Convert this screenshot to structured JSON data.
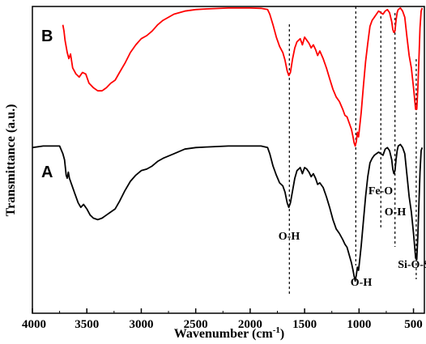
{
  "chart_data": {
    "type": "line",
    "xlabel": "Wavenumber (cm",
    "xlabel_sup": "-1",
    "xlabel_close": ")",
    "ylabel": "Transmittance (a.u.)",
    "xlim": [
      4000,
      400
    ],
    "x_reversed": true,
    "y_ticks_shown": false,
    "grid": false,
    "x_ticks": [
      4000,
      3500,
      3000,
      2500,
      2000,
      1500,
      1000,
      500
    ],
    "series": [
      {
        "name": "B",
        "color": "#ff0000",
        "points": [
          [
            3720,
            0.94
          ],
          [
            3710,
            0.92
          ],
          [
            3700,
            0.89
          ],
          [
            3680,
            0.85
          ],
          [
            3665,
            0.83
          ],
          [
            3650,
            0.845
          ],
          [
            3630,
            0.8
          ],
          [
            3600,
            0.78
          ],
          [
            3570,
            0.77
          ],
          [
            3540,
            0.785
          ],
          [
            3510,
            0.78
          ],
          [
            3480,
            0.75
          ],
          [
            3440,
            0.735
          ],
          [
            3400,
            0.725
          ],
          [
            3360,
            0.725
          ],
          [
            3320,
            0.735
          ],
          [
            3280,
            0.75
          ],
          [
            3240,
            0.76
          ],
          [
            3200,
            0.785
          ],
          [
            3150,
            0.815
          ],
          [
            3100,
            0.85
          ],
          [
            3050,
            0.875
          ],
          [
            3000,
            0.895
          ],
          [
            2950,
            0.905
          ],
          [
            2900,
            0.92
          ],
          [
            2850,
            0.94
          ],
          [
            2800,
            0.955
          ],
          [
            2700,
            0.975
          ],
          [
            2600,
            0.985
          ],
          [
            2500,
            0.99
          ],
          [
            2400,
            0.992
          ],
          [
            2200,
            0.995
          ],
          [
            2000,
            0.995
          ],
          [
            1900,
            0.994
          ],
          [
            1840,
            0.99
          ],
          [
            1820,
            0.975
          ],
          [
            1790,
            0.94
          ],
          [
            1760,
            0.9
          ],
          [
            1730,
            0.87
          ],
          [
            1700,
            0.85
          ],
          [
            1680,
            0.825
          ],
          [
            1660,
            0.79
          ],
          [
            1645,
            0.775
          ],
          [
            1630,
            0.785
          ],
          [
            1610,
            0.83
          ],
          [
            1590,
            0.865
          ],
          [
            1570,
            0.885
          ],
          [
            1540,
            0.895
          ],
          [
            1520,
            0.875
          ],
          [
            1500,
            0.9
          ],
          [
            1480,
            0.89
          ],
          [
            1460,
            0.88
          ],
          [
            1440,
            0.865
          ],
          [
            1420,
            0.875
          ],
          [
            1400,
            0.86
          ],
          [
            1380,
            0.84
          ],
          [
            1360,
            0.855
          ],
          [
            1330,
            0.83
          ],
          [
            1300,
            0.8
          ],
          [
            1270,
            0.765
          ],
          [
            1240,
            0.73
          ],
          [
            1210,
            0.705
          ],
          [
            1180,
            0.69
          ],
          [
            1150,
            0.665
          ],
          [
            1130,
            0.645
          ],
          [
            1110,
            0.64
          ],
          [
            1090,
            0.62
          ],
          [
            1070,
            0.6
          ],
          [
            1055,
            0.575
          ],
          [
            1045,
            0.555
          ],
          [
            1035,
            0.545
          ],
          [
            1025,
            0.56
          ],
          [
            1015,
            0.59
          ],
          [
            1005,
            0.575
          ],
          [
            995,
            0.605
          ],
          [
            980,
            0.655
          ],
          [
            960,
            0.74
          ],
          [
            940,
            0.82
          ],
          [
            920,
            0.88
          ],
          [
            900,
            0.935
          ],
          [
            880,
            0.955
          ],
          [
            860,
            0.965
          ],
          [
            840,
            0.975
          ],
          [
            820,
            0.985
          ],
          [
            800,
            0.98
          ],
          [
            780,
            0.975
          ],
          [
            760,
            0.985
          ],
          [
            740,
            0.99
          ],
          [
            720,
            0.98
          ],
          [
            700,
            0.95
          ],
          [
            690,
            0.925
          ],
          [
            680,
            0.915
          ],
          [
            670,
            0.92
          ],
          [
            660,
            0.955
          ],
          [
            650,
            0.98
          ],
          [
            640,
            0.99
          ],
          [
            620,
            0.995
          ],
          [
            600,
            0.985
          ],
          [
            580,
            0.965
          ],
          [
            560,
            0.9
          ],
          [
            540,
            0.84
          ],
          [
            520,
            0.8
          ],
          [
            500,
            0.735
          ],
          [
            490,
            0.7
          ],
          [
            480,
            0.665
          ],
          [
            470,
            0.665
          ],
          [
            460,
            0.73
          ],
          [
            450,
            0.83
          ],
          [
            440,
            0.93
          ],
          [
            430,
            0.985
          ],
          [
            420,
            0.995
          ]
        ]
      },
      {
        "name": "A",
        "color": "#000000",
        "points": [
          [
            4000,
            0.54
          ],
          [
            3900,
            0.545
          ],
          [
            3800,
            0.545
          ],
          [
            3750,
            0.545
          ],
          [
            3720,
            0.52
          ],
          [
            3705,
            0.5
          ],
          [
            3690,
            0.45
          ],
          [
            3680,
            0.44
          ],
          [
            3670,
            0.46
          ],
          [
            3660,
            0.44
          ],
          [
            3640,
            0.42
          ],
          [
            3610,
            0.39
          ],
          [
            3580,
            0.36
          ],
          [
            3555,
            0.345
          ],
          [
            3530,
            0.355
          ],
          [
            3500,
            0.34
          ],
          [
            3470,
            0.32
          ],
          [
            3440,
            0.31
          ],
          [
            3400,
            0.305
          ],
          [
            3360,
            0.31
          ],
          [
            3320,
            0.32
          ],
          [
            3280,
            0.33
          ],
          [
            3240,
            0.34
          ],
          [
            3200,
            0.365
          ],
          [
            3150,
            0.4
          ],
          [
            3100,
            0.43
          ],
          [
            3050,
            0.45
          ],
          [
            3000,
            0.465
          ],
          [
            2950,
            0.47
          ],
          [
            2900,
            0.48
          ],
          [
            2850,
            0.495
          ],
          [
            2800,
            0.505
          ],
          [
            2700,
            0.52
          ],
          [
            2600,
            0.535
          ],
          [
            2500,
            0.54
          ],
          [
            2400,
            0.542
          ],
          [
            2200,
            0.545
          ],
          [
            2000,
            0.545
          ],
          [
            1900,
            0.545
          ],
          [
            1840,
            0.54
          ],
          [
            1820,
            0.52
          ],
          [
            1790,
            0.48
          ],
          [
            1760,
            0.45
          ],
          [
            1730,
            0.425
          ],
          [
            1700,
            0.415
          ],
          [
            1680,
            0.395
          ],
          [
            1660,
            0.36
          ],
          [
            1645,
            0.345
          ],
          [
            1630,
            0.36
          ],
          [
            1610,
            0.4
          ],
          [
            1590,
            0.44
          ],
          [
            1570,
            0.465
          ],
          [
            1540,
            0.475
          ],
          [
            1520,
            0.455
          ],
          [
            1500,
            0.475
          ],
          [
            1480,
            0.47
          ],
          [
            1460,
            0.46
          ],
          [
            1440,
            0.445
          ],
          [
            1420,
            0.455
          ],
          [
            1400,
            0.44
          ],
          [
            1380,
            0.42
          ],
          [
            1360,
            0.425
          ],
          [
            1330,
            0.41
          ],
          [
            1300,
            0.38
          ],
          [
            1270,
            0.345
          ],
          [
            1240,
            0.305
          ],
          [
            1210,
            0.275
          ],
          [
            1180,
            0.26
          ],
          [
            1150,
            0.24
          ],
          [
            1130,
            0.225
          ],
          [
            1110,
            0.215
          ],
          [
            1090,
            0.19
          ],
          [
            1070,
            0.165
          ],
          [
            1055,
            0.14
          ],
          [
            1045,
            0.12
          ],
          [
            1035,
            0.105
          ],
          [
            1025,
            0.125
          ],
          [
            1015,
            0.15
          ],
          [
            1005,
            0.14
          ],
          [
            995,
            0.17
          ],
          [
            980,
            0.22
          ],
          [
            960,
            0.3
          ],
          [
            940,
            0.38
          ],
          [
            920,
            0.445
          ],
          [
            900,
            0.49
          ],
          [
            880,
            0.505
          ],
          [
            860,
            0.515
          ],
          [
            840,
            0.52
          ],
          [
            820,
            0.525
          ],
          [
            800,
            0.52
          ],
          [
            780,
            0.515
          ],
          [
            760,
            0.535
          ],
          [
            740,
            0.54
          ],
          [
            720,
            0.53
          ],
          [
            700,
            0.5
          ],
          [
            690,
            0.47
          ],
          [
            680,
            0.455
          ],
          [
            670,
            0.465
          ],
          [
            660,
            0.5
          ],
          [
            650,
            0.53
          ],
          [
            640,
            0.545
          ],
          [
            620,
            0.55
          ],
          [
            600,
            0.54
          ],
          [
            580,
            0.52
          ],
          [
            560,
            0.45
          ],
          [
            540,
            0.38
          ],
          [
            520,
            0.33
          ],
          [
            500,
            0.26
          ],
          [
            490,
            0.22
          ],
          [
            480,
            0.18
          ],
          [
            470,
            0.175
          ],
          [
            460,
            0.25
          ],
          [
            450,
            0.36
          ],
          [
            440,
            0.46
          ],
          [
            430,
            0.53
          ],
          [
            420,
            0.54
          ]
        ]
      }
    ],
    "panel_labels": [
      "B",
      "A"
    ],
    "reference_lines": [
      1640,
      1030,
      800,
      670,
      475
    ],
    "annotations": [
      {
        "text": "O-H",
        "x": 1640
      },
      {
        "text": "O-H",
        "x": 1030
      },
      {
        "text": "Fe-O",
        "x": 800
      },
      {
        "text": "O-H",
        "x": 670
      },
      {
        "text": "Si-O-Si",
        "x": 475
      }
    ]
  }
}
